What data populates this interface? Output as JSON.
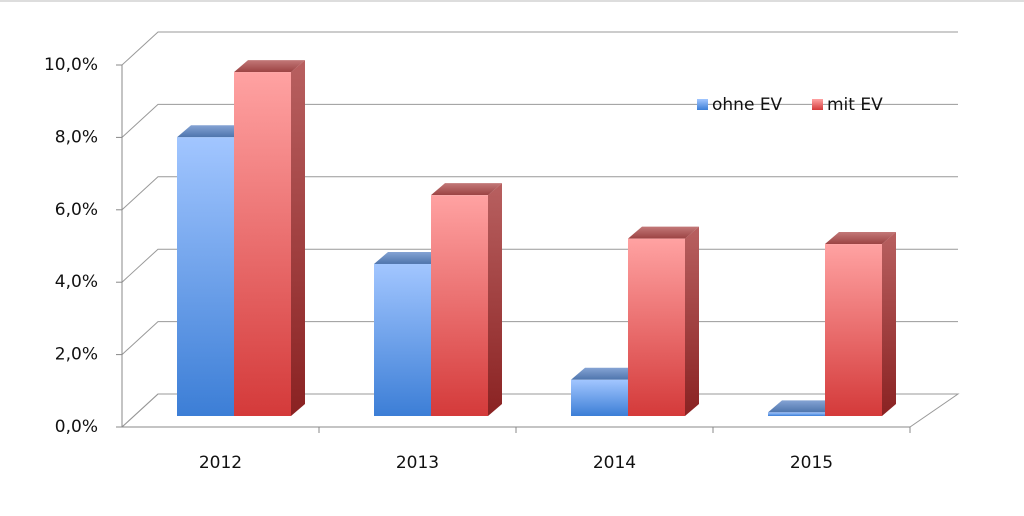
{
  "chart_data": {
    "type": "bar3d",
    "categories": [
      "2012",
      "2013",
      "2014",
      "2015"
    ],
    "series": [
      {
        "name": "ohne EV",
        "color": "#5b8fe0",
        "values": [
          7.7,
          4.2,
          1.0,
          0.1
        ]
      },
      {
        "name": "mit EV",
        "color": "#e05555",
        "values": [
          9.5,
          6.1,
          4.9,
          4.75
        ]
      }
    ],
    "ylim": [
      0,
      10
    ],
    "yticks": [
      {
        "value": 0,
        "label": "0,0%"
      },
      {
        "value": 2,
        "label": "2,0%"
      },
      {
        "value": 4,
        "label": "4,0%"
      },
      {
        "value": 6,
        "label": "6,0%"
      },
      {
        "value": 8,
        "label": "8,0%"
      },
      {
        "value": 10,
        "label": "10,0%"
      }
    ],
    "grid": true
  }
}
